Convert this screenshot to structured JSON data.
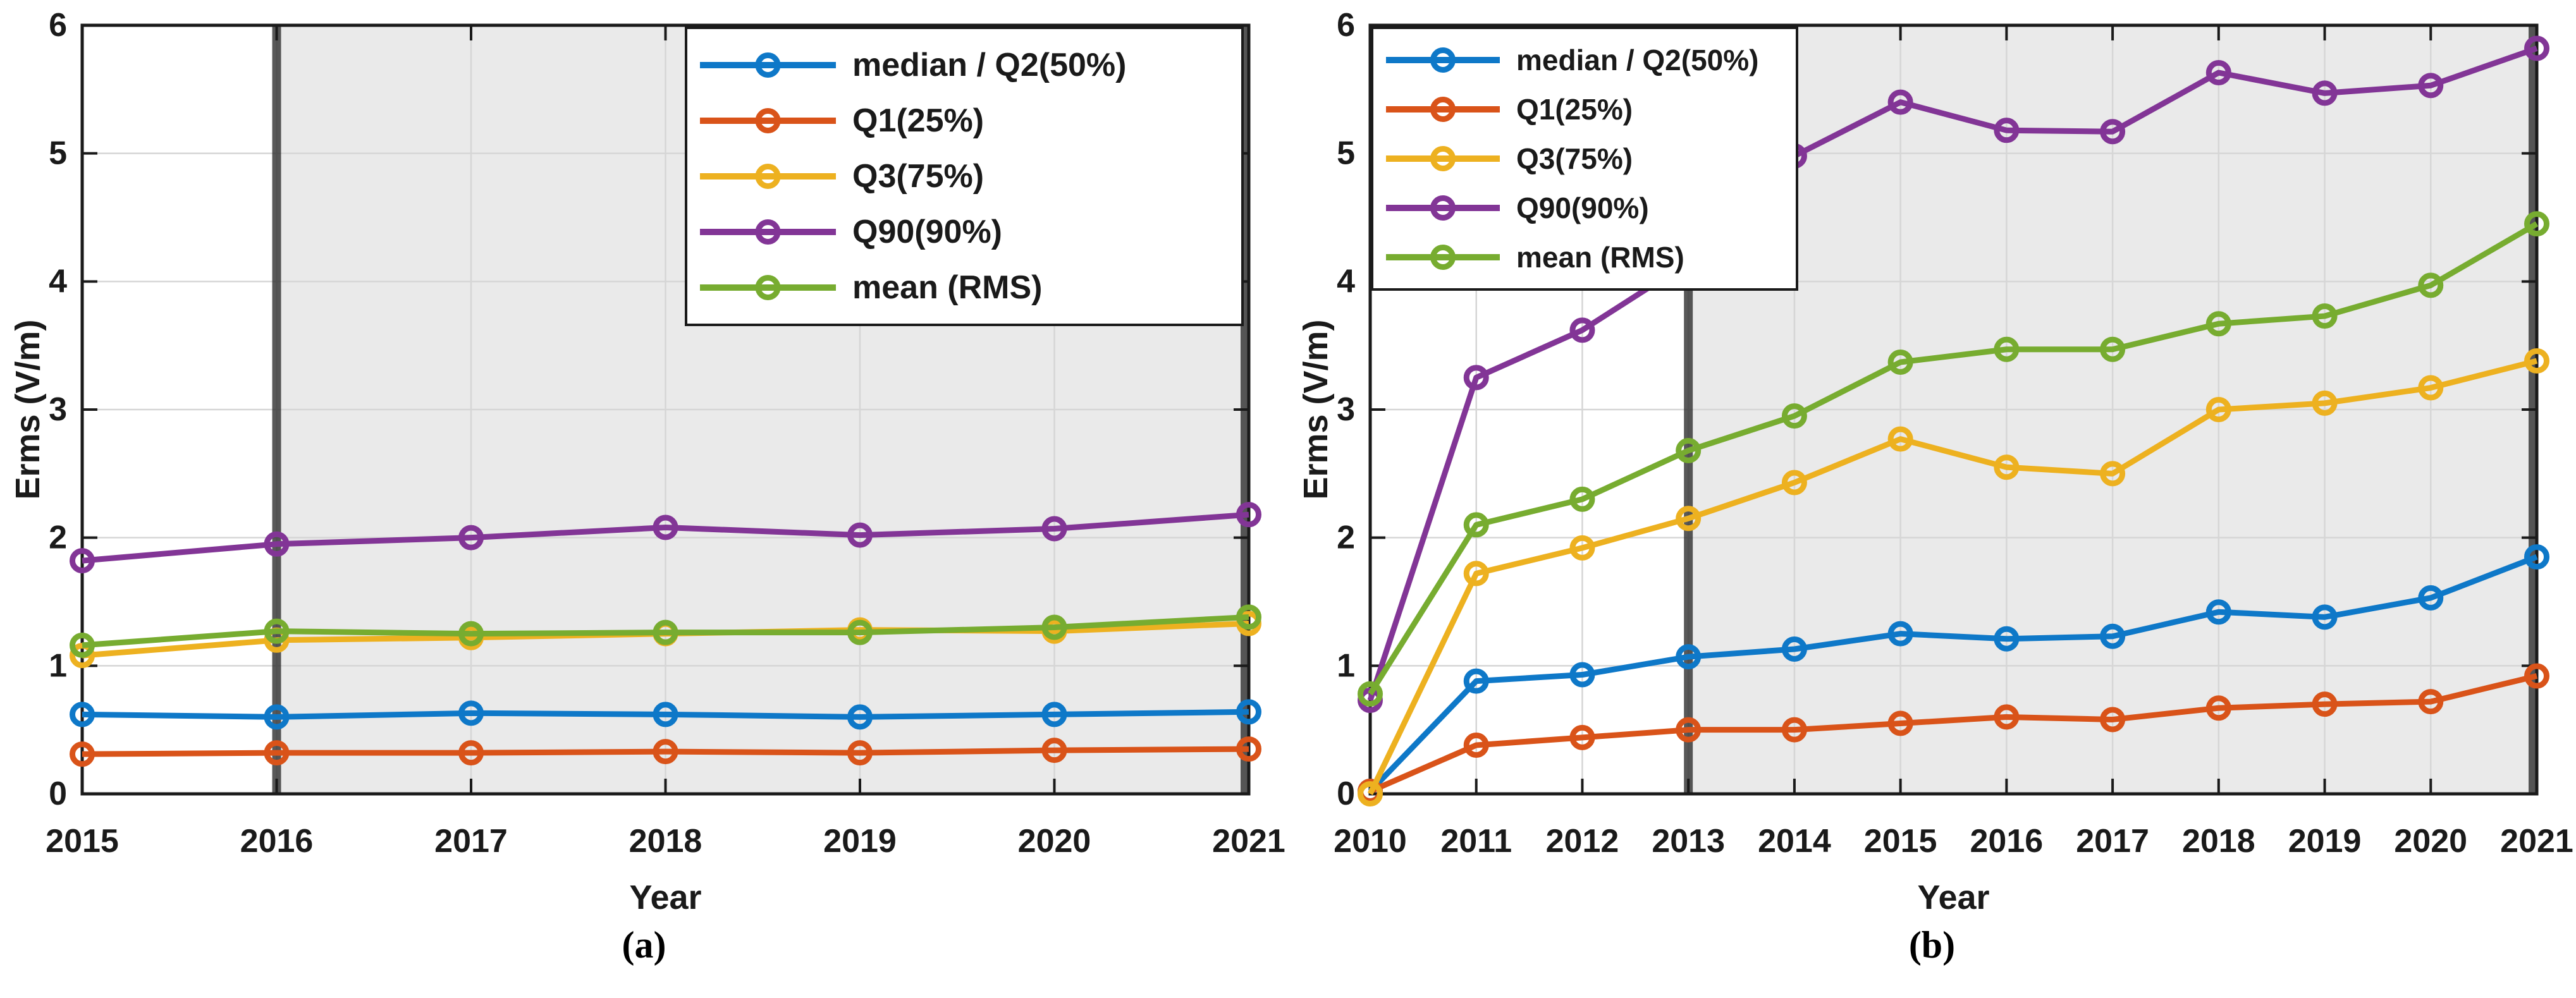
{
  "figure": {
    "background": "#ffffff",
    "text_color": "#1a1a1a",
    "grid_color": "#d6d6d6",
    "axis_color": "#1a1a1a",
    "panels": [
      {
        "caption": "(a)"
      },
      {
        "caption": "(b)"
      }
    ]
  },
  "chart_data": [
    {
      "panel": "a",
      "type": "line",
      "caption": "(a)",
      "xlabel": "Year",
      "ylabel": "Erms (V/m)",
      "x": [
        2015,
        2016,
        2017,
        2018,
        2019,
        2020,
        2021
      ],
      "ylim": [
        0,
        6
      ],
      "yticks": [
        0,
        1,
        2,
        3,
        4,
        5,
        6
      ],
      "grid": true,
      "legend_position": "top-right",
      "shaded_region": {
        "from": 2016,
        "to": 2021,
        "color": "#eaeaea"
      },
      "highlight_bars": {
        "years": [
          2016,
          2021
        ],
        "color": "rgba(42,42,42,0.78)"
      },
      "series": [
        {
          "name": "median / Q2(50%)",
          "color": "#0E78C8",
          "values": [
            0.62,
            0.6,
            0.63,
            0.62,
            0.6,
            0.62,
            0.64
          ]
        },
        {
          "name": "Q1(25%)",
          "color": "#D95319",
          "values": [
            0.31,
            0.32,
            0.32,
            0.33,
            0.32,
            0.34,
            0.35
          ]
        },
        {
          "name": "Q3(75%)",
          "color": "#EDB120",
          "values": [
            1.08,
            1.2,
            1.22,
            1.25,
            1.28,
            1.27,
            1.33
          ]
        },
        {
          "name": "Q90(90%)",
          "color": "#823596",
          "values": [
            1.82,
            1.95,
            2.0,
            2.08,
            2.02,
            2.07,
            2.18
          ]
        },
        {
          "name": "mean (RMS)",
          "color": "#77AC30",
          "values": [
            1.16,
            1.27,
            1.25,
            1.26,
            1.26,
            1.3,
            1.38
          ]
        }
      ]
    },
    {
      "panel": "b",
      "type": "line",
      "caption": "(b)",
      "xlabel": "Year",
      "ylabel": "Erms (V/m)",
      "x": [
        2010,
        2011,
        2012,
        2013,
        2014,
        2015,
        2016,
        2017,
        2018,
        2019,
        2020,
        2021
      ],
      "ylim": [
        0,
        6
      ],
      "yticks": [
        0,
        1,
        2,
        3,
        4,
        5,
        6
      ],
      "grid": true,
      "legend_position": "top-left",
      "shaded_region": {
        "from": 2013,
        "to": 2021,
        "color": "#eaeaea"
      },
      "highlight_bars": {
        "years": [
          2013,
          2021
        ],
        "color": "rgba(42,42,42,0.78)"
      },
      "series": [
        {
          "name": "median / Q2(50%)",
          "color": "#0E78C8",
          "values": [
            0.02,
            0.88,
            0.93,
            1.07,
            1.13,
            1.25,
            1.21,
            1.23,
            1.42,
            1.38,
            1.53,
            1.85
          ]
        },
        {
          "name": "Q1(25%)",
          "color": "#D95319",
          "values": [
            0.02,
            0.38,
            0.44,
            0.5,
            0.5,
            0.55,
            0.6,
            0.58,
            0.67,
            0.7,
            0.72,
            0.92
          ]
        },
        {
          "name": "Q3(75%)",
          "color": "#EDB120",
          "values": [
            0.0,
            1.72,
            1.92,
            2.15,
            2.43,
            2.77,
            2.55,
            2.5,
            3.0,
            3.05,
            3.17,
            3.38
          ]
        },
        {
          "name": "Q90(90%)",
          "color": "#823596",
          "values": [
            0.73,
            3.25,
            3.62,
            4.15,
            4.98,
            5.4,
            5.18,
            5.17,
            5.63,
            5.47,
            5.53,
            5.82
          ]
        },
        {
          "name": "mean (RMS)",
          "color": "#77AC30",
          "values": [
            0.78,
            2.1,
            2.3,
            2.68,
            2.95,
            3.37,
            3.47,
            3.47,
            3.67,
            3.73,
            3.97,
            4.45
          ]
        }
      ]
    }
  ]
}
